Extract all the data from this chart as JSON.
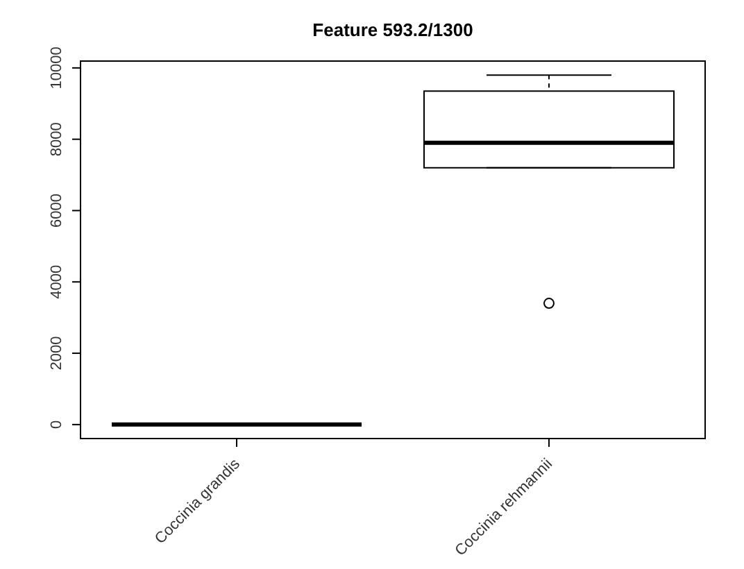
{
  "chart_data": {
    "type": "box",
    "title": "Feature  593.2/1300",
    "categories": [
      "Coccinia grandis",
      "Coccinia rehmannii"
    ],
    "boxes": [
      {
        "low": 0,
        "q1": 0,
        "median": 0,
        "q3": 0,
        "high": 0
      },
      {
        "low": 7200,
        "q1": 7200,
        "median": 7900,
        "q3": 9350,
        "high": 9800,
        "outliers": [
          3400
        ]
      }
    ],
    "ylim": [
      -392,
      10192
    ],
    "yticks": [
      0,
      2000,
      4000,
      6000,
      8000,
      10000
    ]
  }
}
